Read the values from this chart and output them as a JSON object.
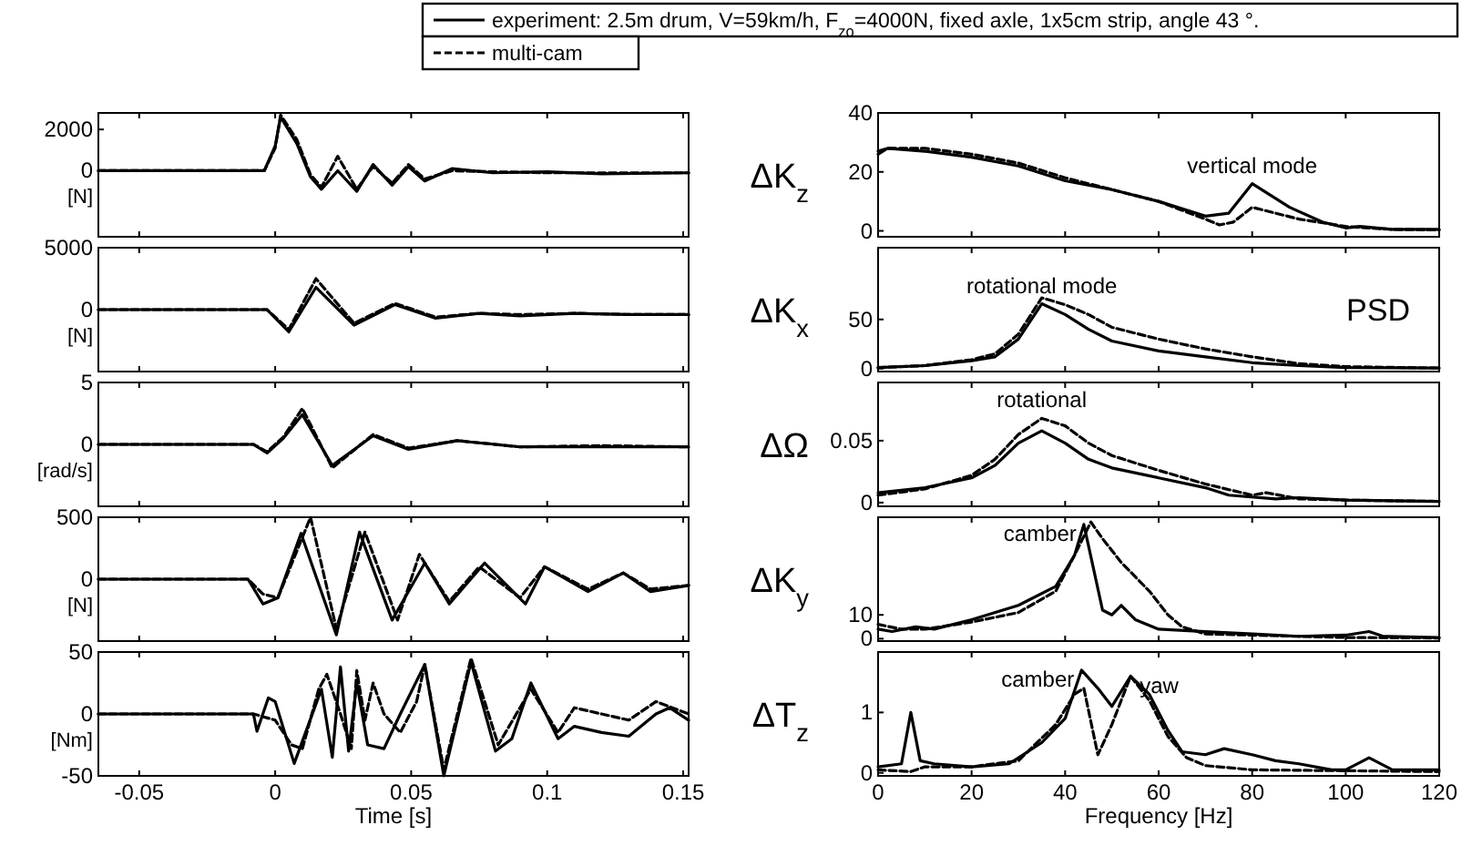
{
  "chart_data": [
    {
      "type": "line",
      "xlim": [
        -0.065,
        0.152
      ],
      "xticks": [
        -0.05,
        0,
        0.05,
        0.1,
        0.15
      ],
      "ylim": [
        -3200,
        2800
      ],
      "yticks": [
        2000,
        0
      ],
      "ylabel": "[N]",
      "tick_labels": "y",
      "legend": "top",
      "series": [
        {
          "name": "experiment: 2.5m drum, V=59km/h, F$_{zo}$=4000N, fixed axle, 1x5cm strip, angle 43 °.",
          "color": "#000000",
          "line_style": "solid",
          "x": [
            -0.065,
            -0.01,
            -0.004,
            0,
            0.002,
            0.008,
            0.013,
            0.017,
            0.023,
            0.03,
            0.036,
            0.043,
            0.049,
            0.055,
            0.065,
            0.08,
            0.1,
            0.12,
            0.152
          ],
          "values": [
            0,
            0,
            0,
            1200,
            2600,
            1300,
            -300,
            -900,
            0,
            -1000,
            300,
            -700,
            200,
            -500,
            100,
            -100,
            -50,
            -150,
            -100
          ]
        },
        {
          "name": "multi-cam",
          "color": "#000000",
          "line_style": "dashed",
          "x": [
            -0.065,
            -0.01,
            -0.004,
            0,
            0.002,
            0.008,
            0.013,
            0.017,
            0.023,
            0.03,
            0.036,
            0.043,
            0.049,
            0.055,
            0.065,
            0.08,
            0.1,
            0.12,
            0.152
          ],
          "values": [
            0,
            0,
            0,
            1100,
            2700,
            1500,
            -200,
            -800,
            700,
            -900,
            200,
            -600,
            300,
            -400,
            0,
            -50,
            -100,
            -100,
            -100
          ]
        }
      ]
    },
    {
      "type": "line",
      "xlim": [
        -0.065,
        0.152
      ],
      "xticks": [
        -0.05,
        0,
        0.05,
        0.1,
        0.15
      ],
      "ylim": [
        -5000,
        5000
      ],
      "yticks": [
        5000,
        0
      ],
      "ylabel": "[N]",
      "tick_labels": "y",
      "series": [
        {
          "color": "#000000",
          "line_style": "solid",
          "x": [
            -0.065,
            -0.003,
            0.005,
            0.015,
            0.029,
            0.044,
            0.059,
            0.075,
            0.09,
            0.11,
            0.13,
            0.152
          ],
          "values": [
            0,
            0,
            -1800,
            1800,
            -1250,
            400,
            -700,
            -300,
            -500,
            -300,
            -400,
            -400
          ]
        },
        {
          "color": "#000000",
          "line_style": "dashed",
          "x": [
            -0.065,
            -0.003,
            0.005,
            0.015,
            0.029,
            0.044,
            0.059,
            0.075,
            0.09,
            0.11,
            0.13,
            0.152
          ],
          "values": [
            0,
            0,
            -1600,
            2500,
            -1100,
            500,
            -600,
            -300,
            -400,
            -300,
            -400,
            -400
          ]
        }
      ]
    },
    {
      "type": "line",
      "xlim": [
        -0.065,
        0.152
      ],
      "xticks": [
        -0.05,
        0,
        0.05,
        0.1,
        0.15
      ],
      "ylim": [
        -5,
        5
      ],
      "yticks": [
        5,
        0
      ],
      "ylabel": "[rad/s]",
      "tick_labels": "y",
      "series": [
        {
          "color": "#000000",
          "line_style": "solid",
          "x": [
            -0.065,
            -0.008,
            -0.003,
            0.003,
            0.01,
            0.021,
            0.036,
            0.049,
            0.067,
            0.09,
            0.12,
            0.152
          ],
          "values": [
            0,
            0,
            -0.7,
            0.5,
            2.4,
            -1.7,
            0.7,
            -0.4,
            0.3,
            -0.2,
            -0.2,
            -0.2
          ]
        },
        {
          "color": "#000000",
          "line_style": "dashed",
          "x": [
            -0.065,
            -0.008,
            -0.003,
            0.003,
            0.01,
            0.021,
            0.036,
            0.049,
            0.067,
            0.09,
            0.12,
            0.152
          ],
          "values": [
            0,
            0,
            -0.6,
            0.6,
            2.9,
            -1.9,
            0.8,
            -0.3,
            0.3,
            -0.2,
            -0.1,
            -0.2
          ]
        }
      ]
    },
    {
      "type": "line",
      "xlim": [
        -0.065,
        0.152
      ],
      "xticks": [
        -0.05,
        0,
        0.05,
        0.1,
        0.15
      ],
      "ylim": [
        -500,
        500
      ],
      "yticks": [
        500,
        0
      ],
      "ylabel": "[N]",
      "tick_labels": "y",
      "series": [
        {
          "color": "#000000",
          "line_style": "solid",
          "x": [
            -0.065,
            -0.01,
            -0.0045,
            0.001,
            0.0095,
            0.0225,
            0.031,
            0.043,
            0.055,
            0.064,
            0.077,
            0.092,
            0.099,
            0.115,
            0.128,
            0.138,
            0.152
          ],
          "values": [
            0,
            0,
            -200,
            -150,
            370,
            -450,
            380,
            -330,
            130,
            -200,
            130,
            -200,
            100,
            -100,
            50,
            -100,
            -50
          ]
        },
        {
          "color": "#000000",
          "line_style": "dashed",
          "x": [
            -0.065,
            -0.01,
            -0.0045,
            0.001,
            0.013,
            0.0225,
            0.033,
            0.045,
            0.053,
            0.064,
            0.075,
            0.09,
            0.099,
            0.115,
            0.128,
            0.138,
            0.152
          ],
          "values": [
            0,
            0,
            -120,
            -150,
            500,
            -400,
            380,
            -330,
            200,
            -180,
            100,
            -150,
            100,
            -80,
            50,
            -80,
            -50
          ]
        }
      ]
    },
    {
      "type": "line",
      "xlim": [
        -0.065,
        0.152
      ],
      "xticks": [
        -0.05,
        0,
        0.05,
        0.1,
        0.15
      ],
      "ylim": [
        -50,
        50
      ],
      "yticks": [
        50,
        0,
        -50
      ],
      "ylabel": "[Nm]",
      "xlabel": "Time [s]",
      "series": [
        {
          "color": "#000000",
          "line_style": "solid",
          "x": [
            -0.065,
            -0.008,
            -0.0067,
            -0.0025,
            0,
            0.007,
            0.017,
            0.021,
            0.024,
            0.027,
            0.03,
            0.034,
            0.04,
            0.046,
            0.055,
            0.062,
            0.072,
            0.081,
            0.087,
            0.094,
            0.104,
            0.11,
            0.12,
            0.13,
            0.14,
            0.145,
            0.152
          ],
          "values": [
            0,
            0,
            -14,
            13,
            10,
            -40,
            20,
            -35,
            38,
            -30,
            25,
            -25,
            -28,
            0,
            40,
            -50,
            42,
            -30,
            -20,
            25,
            -20,
            -10,
            -15,
            -18,
            0,
            5,
            -5
          ]
        },
        {
          "color": "#000000",
          "line_style": "dashed",
          "x": [
            -0.065,
            -0.008,
            0,
            0.006,
            0.01,
            0.016,
            0.019,
            0.024,
            0.028,
            0.03,
            0.033,
            0.036,
            0.04,
            0.046,
            0.052,
            0.055,
            0.062,
            0.072,
            0.082,
            0.094,
            0.104,
            0.11,
            0.12,
            0.13,
            0.14,
            0.152
          ],
          "values": [
            0,
            0,
            -5,
            -25,
            -28,
            20,
            32,
            0,
            -28,
            35,
            -5,
            25,
            0,
            -15,
            10,
            40,
            -45,
            45,
            -25,
            20,
            -15,
            5,
            0,
            -5,
            10,
            0
          ]
        }
      ]
    },
    {
      "type": "line",
      "xlim": [
        0,
        120
      ],
      "xticks": [
        0,
        20,
        40,
        60,
        80,
        100,
        120
      ],
      "ylim": [
        -2,
        40
      ],
      "yticks": [
        0,
        20,
        40
      ],
      "ylabel": "ΔK$_{z}$",
      "tick_labels": "y",
      "annotations": [
        {
          "text": "vertical mode",
          "x": 80,
          "y": 16
        }
      ],
      "series": [
        {
          "color": "#000000",
          "line_style": "solid",
          "x": [
            0,
            2,
            10,
            20,
            30,
            40,
            50,
            60,
            70,
            75,
            80,
            88,
            95,
            100,
            103,
            110,
            120
          ],
          "values": [
            26,
            28,
            27,
            25,
            22,
            17,
            14,
            10,
            5,
            6,
            16,
            8,
            3,
            1,
            1.5,
            0.5,
            0.5
          ]
        },
        {
          "color": "#000000",
          "line_style": "dashed",
          "x": [
            0,
            2,
            10,
            20,
            30,
            40,
            50,
            60,
            70,
            73,
            76,
            80,
            85,
            90,
            100,
            110,
            120
          ],
          "values": [
            27,
            28,
            28,
            26,
            23,
            18,
            14,
            10,
            4,
            2,
            3,
            8,
            6,
            4,
            1.5,
            0.5,
            0.3
          ]
        }
      ]
    },
    {
      "type": "line",
      "xlim": [
        0,
        120
      ],
      "xticks": [
        0,
        20,
        40,
        60,
        80,
        100,
        120
      ],
      "ylim": [
        -3,
        123
      ],
      "yticks": [
        0,
        50
      ],
      "ylabel": "ΔK$_{x}$",
      "tick_labels": "y",
      "annotations": [
        {
          "text": "rotational mode",
          "x": 35,
          "y": 66
        },
        "PSD"
      ],
      "series": [
        {
          "color": "#000000",
          "line_style": "solid",
          "x": [
            0,
            10,
            20,
            25,
            30,
            35,
            40,
            45,
            50,
            60,
            70,
            80,
            90,
            100,
            120
          ],
          "values": [
            1,
            3,
            8,
            12,
            30,
            66,
            55,
            40,
            28,
            18,
            12,
            6,
            3,
            1,
            0.5
          ]
        },
        {
          "color": "#000000",
          "line_style": "dashed",
          "x": [
            0,
            10,
            20,
            25,
            30,
            35,
            40,
            45,
            50,
            60,
            70,
            80,
            90,
            100,
            120
          ],
          "values": [
            1,
            3,
            9,
            15,
            35,
            72,
            65,
            55,
            42,
            30,
            20,
            12,
            5,
            2,
            0.5
          ]
        }
      ]
    },
    {
      "type": "line",
      "xlim": [
        0,
        120
      ],
      "xticks": [
        0,
        20,
        40,
        60,
        80,
        100,
        120
      ],
      "ylim": [
        -0.003,
        0.097
      ],
      "yticks": [
        0,
        0.05
      ],
      "ylabel": "ΔΩ",
      "tick_labels": "y",
      "annotations": [
        {
          "text": "rotational",
          "x": 35,
          "y": 0.068
        }
      ],
      "series": [
        {
          "color": "#000000",
          "line_style": "solid",
          "x": [
            0,
            10,
            20,
            25,
            30,
            35,
            40,
            45,
            50,
            60,
            70,
            75,
            85,
            90,
            100,
            120
          ],
          "values": [
            0.008,
            0.012,
            0.02,
            0.03,
            0.048,
            0.058,
            0.048,
            0.035,
            0.028,
            0.02,
            0.012,
            0.006,
            0.003,
            0.004,
            0.002,
            0.001
          ]
        },
        {
          "color": "#000000",
          "line_style": "dashed",
          "x": [
            0,
            10,
            20,
            25,
            30,
            35,
            40,
            45,
            50,
            60,
            70,
            80,
            83,
            90,
            100,
            120
          ],
          "values": [
            0.006,
            0.011,
            0.022,
            0.035,
            0.055,
            0.068,
            0.062,
            0.048,
            0.038,
            0.026,
            0.015,
            0.006,
            0.008,
            0.003,
            0.002,
            0.001
          ]
        }
      ]
    },
    {
      "type": "line",
      "xlim": [
        0,
        120
      ],
      "xticks": [
        0,
        20,
        40,
        60,
        80,
        100,
        120
      ],
      "ylim": [
        -1,
        51
      ],
      "yticks": [
        0,
        10
      ],
      "ylabel": "ΔK$_{y}$",
      "tick_labels": "y",
      "annotations": [
        {
          "text": "camber",
          "x": 44,
          "y": 48
        }
      ],
      "series": [
        {
          "color": "#000000",
          "line_style": "solid",
          "x": [
            0,
            3,
            8,
            12,
            20,
            30,
            38,
            42,
            44,
            46,
            48,
            50,
            52,
            55,
            60,
            70,
            80,
            90,
            100,
            105,
            108,
            120
          ],
          "values": [
            4,
            3,
            5,
            4,
            8,
            14,
            22,
            35,
            48,
            30,
            12,
            10,
            14,
            8,
            4,
            3,
            2,
            1,
            1.5,
            3,
            1,
            0.5
          ]
        },
        {
          "color": "#000000",
          "line_style": "dashed",
          "x": [
            0,
            5,
            10,
            20,
            30,
            38,
            42,
            45.5,
            48,
            52,
            58,
            62,
            65,
            70,
            80,
            90,
            100,
            120
          ],
          "values": [
            6,
            4,
            4,
            7,
            11,
            20,
            35,
            49,
            42,
            32,
            20,
            10,
            5,
            2,
            1.5,
            1,
            0.5,
            0.3
          ]
        }
      ]
    },
    {
      "type": "line",
      "xlim": [
        0,
        120
      ],
      "xticks": [
        0,
        20,
        40,
        60,
        80,
        100,
        120
      ],
      "ylim": [
        -0.05,
        2
      ],
      "yticks": [
        0,
        1
      ],
      "ylabel": "ΔT$_{z}$",
      "xlabel": "Frequency [Hz]",
      "annotations": [
        {
          "text": "camber",
          "x": 43.5,
          "y": 1.7
        },
        {
          "text": "yaw",
          "x": 54,
          "y": 1.6
        }
      ],
      "series": [
        {
          "color": "#000000",
          "line_style": "solid",
          "x": [
            0,
            5,
            7,
            9,
            12,
            20,
            28,
            35,
            40,
            43.5,
            47,
            50,
            54,
            58,
            62,
            65,
            70,
            74,
            80,
            85,
            90,
            97,
            100,
            105,
            110,
            120
          ],
          "values": [
            0.1,
            0.15,
            1,
            0.2,
            0.15,
            0.1,
            0.15,
            0.5,
            0.9,
            1.7,
            1.4,
            1.1,
            1.6,
            1.3,
            0.7,
            0.35,
            0.3,
            0.4,
            0.3,
            0.2,
            0.15,
            0.05,
            0.05,
            0.25,
            0.05,
            0.05
          ]
        },
        {
          "color": "#000000",
          "line_style": "dashed",
          "x": [
            0,
            7,
            10,
            20,
            30,
            38,
            42,
            44,
            47,
            50,
            54,
            58,
            62,
            66,
            70,
            80,
            120
          ],
          "values": [
            0.05,
            0.02,
            0.1,
            0.1,
            0.2,
            0.8,
            1.3,
            1.4,
            0.3,
            0.8,
            1.6,
            1.2,
            0.6,
            0.25,
            0.12,
            0.05,
            0.02
          ]
        }
      ]
    }
  ]
}
